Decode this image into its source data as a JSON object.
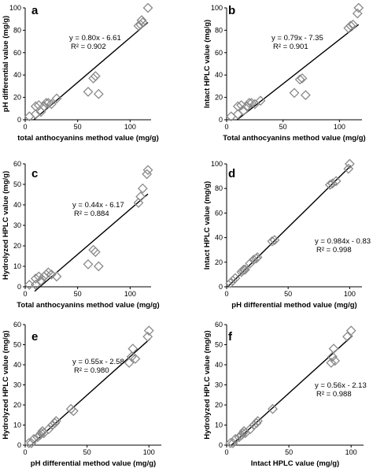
{
  "chart_data": [
    {
      "panel_label": "a",
      "type": "scatter",
      "xlabel": "total anthocyanins method value  (mg/g)",
      "ylabel": "pH differential value (mg/g)",
      "xlim": [
        0,
        120
      ],
      "ylim": [
        0,
        100
      ],
      "xticks": [
        0,
        50,
        100
      ],
      "yticks": [
        0,
        20,
        40,
        60,
        80,
        100
      ],
      "xtick_labels": [
        "0",
        "50",
        "100"
      ],
      "ytick_labels": [
        "0",
        "20",
        "40",
        "60",
        "80",
        "100"
      ],
      "equation": "y = 0.80x - 6.61",
      "r2": "R² = 0.902",
      "fit": {
        "slope": 0.8,
        "intercept": -6.61,
        "x_range": [
          8,
          117
        ]
      },
      "points": [
        [
          4,
          3
        ],
        [
          10,
          5
        ],
        [
          10,
          12
        ],
        [
          13,
          13
        ],
        [
          15,
          7
        ],
        [
          18,
          12
        ],
        [
          20,
          15
        ],
        [
          22,
          15
        ],
        [
          25,
          14
        ],
        [
          30,
          19
        ],
        [
          60,
          25
        ],
        [
          65,
          37
        ],
        [
          67,
          39
        ],
        [
          70,
          23
        ],
        [
          108,
          84
        ],
        [
          110,
          85
        ],
        [
          112,
          87
        ],
        [
          111,
          89
        ],
        [
          117,
          100
        ]
      ]
    },
    {
      "panel_label": "b",
      "type": "scatter",
      "xlabel": "Total anthocyanins method value  (mg/g)",
      "ylabel": "Intact HPLC value (mg/g)",
      "xlim": [
        0,
        120
      ],
      "ylim": [
        0,
        100
      ],
      "xticks": [
        0,
        50,
        100
      ],
      "yticks": [
        0,
        20,
        40,
        60,
        80,
        100
      ],
      "xtick_labels": [
        "0",
        "50",
        "100"
      ],
      "ytick_labels": [
        "0",
        "20",
        "40",
        "60",
        "80",
        "100"
      ],
      "equation": "y = 0.79x - 7.35",
      "r2": "R² = 0.901",
      "fit": {
        "slope": 0.79,
        "intercept": -7.35,
        "x_range": [
          9,
          117
        ]
      },
      "points": [
        [
          4,
          3
        ],
        [
          10,
          5
        ],
        [
          10,
          12
        ],
        [
          13,
          13
        ],
        [
          15,
          8
        ],
        [
          18,
          12
        ],
        [
          20,
          15
        ],
        [
          22,
          15
        ],
        [
          25,
          14
        ],
        [
          30,
          17
        ],
        [
          60,
          24
        ],
        [
          65,
          36
        ],
        [
          67,
          37
        ],
        [
          70,
          22
        ],
        [
          108,
          82
        ],
        [
          110,
          84
        ],
        [
          112,
          85
        ],
        [
          116,
          95
        ],
        [
          117,
          100
        ]
      ]
    },
    {
      "panel_label": "c",
      "type": "scatter",
      "xlabel": "Total anthocyanins method value (mg/g)",
      "ylabel": "Hydrolyzed  HPLC value (mg/g)",
      "xlim": [
        0,
        120
      ],
      "ylim": [
        0,
        60
      ],
      "xticks": [
        0,
        50,
        100
      ],
      "yticks": [
        0,
        10,
        20,
        30,
        40,
        50,
        60
      ],
      "xtick_labels": [
        "0",
        "50",
        "100"
      ],
      "ytick_labels": [
        "0",
        "10",
        "20",
        "30",
        "40",
        "50",
        "60"
      ],
      "equation": "y = 0.44x - 6.17",
      "r2": "R² = 0.884",
      "fit": {
        "slope": 0.44,
        "intercept": -6.17,
        "x_range": [
          9,
          117
        ]
      },
      "points": [
        [
          4,
          1
        ],
        [
          10,
          1
        ],
        [
          10,
          4
        ],
        [
          13,
          5
        ],
        [
          15,
          3
        ],
        [
          18,
          5
        ],
        [
          20,
          6
        ],
        [
          22,
          7
        ],
        [
          25,
          6
        ],
        [
          30,
          5
        ],
        [
          60,
          11
        ],
        [
          65,
          18
        ],
        [
          67,
          17
        ],
        [
          70,
          10
        ],
        [
          108,
          41
        ],
        [
          110,
          44
        ],
        [
          112,
          48
        ],
        [
          116,
          55
        ],
        [
          117,
          57
        ]
      ]
    },
    {
      "panel_label": "d",
      "type": "scatter",
      "xlabel": "pH differential method value (mg/g)",
      "ylabel": "Intact HPLC value (mg/g)",
      "xlim": [
        0,
        110
      ],
      "ylim": [
        0,
        100
      ],
      "xticks": [
        0,
        50,
        100
      ],
      "yticks": [
        0,
        20,
        40,
        60,
        80,
        100
      ],
      "xtick_labels": [
        "0",
        "50",
        "100"
      ],
      "ytick_labels": [
        "0",
        "20",
        "40",
        "60",
        "80",
        "100"
      ],
      "equation": "y = 0.984x - 0.83",
      "r2": "R² = 0.998",
      "fit": {
        "slope": 0.984,
        "intercept": -0.83,
        "x_range": [
          1,
          101
        ]
      },
      "points": [
        [
          3,
          3
        ],
        [
          5,
          5
        ],
        [
          7,
          7
        ],
        [
          12,
          12
        ],
        [
          13,
          13
        ],
        [
          14,
          14
        ],
        [
          15,
          14
        ],
        [
          19,
          19
        ],
        [
          22,
          22
        ],
        [
          24,
          23
        ],
        [
          25,
          24
        ],
        [
          37,
          37
        ],
        [
          39,
          38
        ],
        [
          84,
          83
        ],
        [
          86,
          84
        ],
        [
          89,
          86
        ],
        [
          99,
          96
        ],
        [
          100,
          100
        ]
      ]
    },
    {
      "panel_label": "e",
      "type": "scatter",
      "xlabel": "pH differential method value (mg/g)",
      "ylabel": "Hydrolyzed  HPLC value (mg/g)",
      "xlim": [
        0,
        110
      ],
      "ylim": [
        0,
        60
      ],
      "xticks": [
        0,
        50,
        100
      ],
      "yticks": [
        0,
        10,
        20,
        30,
        40,
        50,
        60
      ],
      "xtick_labels": [
        "0",
        "50",
        "100"
      ],
      "ytick_labels": [
        "0",
        "10",
        "20",
        "30",
        "40",
        "50",
        "60"
      ],
      "equation": "y = 0.55x - 2.58",
      "r2": "R² = 0.980",
      "fit": {
        "slope": 0.55,
        "intercept": -2.58,
        "x_range": [
          4,
          101
        ]
      },
      "points": [
        [
          3,
          1
        ],
        [
          5,
          1
        ],
        [
          7,
          3
        ],
        [
          10,
          4
        ],
        [
          12,
          5
        ],
        [
          13,
          6
        ],
        [
          14,
          7
        ],
        [
          15,
          6
        ],
        [
          19,
          8
        ],
        [
          22,
          10
        ],
        [
          24,
          11
        ],
        [
          25,
          12
        ],
        [
          37,
          18
        ],
        [
          39,
          17
        ],
        [
          84,
          41
        ],
        [
          86,
          44
        ],
        [
          87,
          48
        ],
        [
          89,
          43
        ],
        [
          99,
          54
        ],
        [
          100,
          57
        ]
      ]
    },
    {
      "panel_label": "f",
      "type": "scatter",
      "xlabel": "Intact HPLC value (mg/g)",
      "ylabel": "Hydrolyzed  HPLC value (mg/g)",
      "xlim": [
        0,
        110
      ],
      "ylim": [
        0,
        60
      ],
      "xticks": [
        0,
        50,
        100
      ],
      "yticks": [
        0,
        10,
        20,
        30,
        40,
        50,
        60
      ],
      "xtick_labels": [
        "0",
        "50",
        "100"
      ],
      "ytick_labels": [
        "0",
        "10",
        "20",
        "30",
        "40",
        "50",
        "60"
      ],
      "equation": "y = 0.56x - 2.13",
      "r2": "R² = 0.988",
      "fit": {
        "slope": 0.56,
        "intercept": -2.13,
        "x_range": [
          4,
          101
        ]
      },
      "points": [
        [
          3,
          1
        ],
        [
          5,
          1
        ],
        [
          7,
          3
        ],
        [
          10,
          4
        ],
        [
          12,
          5
        ],
        [
          13,
          6
        ],
        [
          14,
          7
        ],
        [
          15,
          6
        ],
        [
          19,
          8
        ],
        [
          22,
          10
        ],
        [
          24,
          11
        ],
        [
          25,
          12
        ],
        [
          37,
          18
        ],
        [
          84,
          41
        ],
        [
          85,
          44
        ],
        [
          86,
          48
        ],
        [
          87,
          42
        ],
        [
          97,
          54
        ],
        [
          100,
          57
        ]
      ]
    }
  ]
}
